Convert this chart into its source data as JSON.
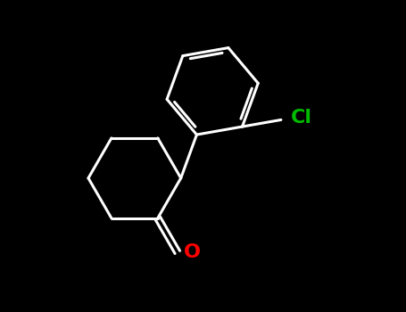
{
  "background_color": "#000000",
  "bond_color": "#ffffff",
  "cl_color": "#00bb00",
  "o_color": "#ff0000",
  "line_width": 2.2,
  "figsize": [
    4.55,
    3.5
  ],
  "dpi": 100,
  "cl_label": "Cl",
  "o_label": "O",
  "cl_fontsize": 16,
  "o_fontsize": 16,
  "xlim": [
    0,
    10
  ],
  "ylim": [
    0,
    7.7
  ]
}
